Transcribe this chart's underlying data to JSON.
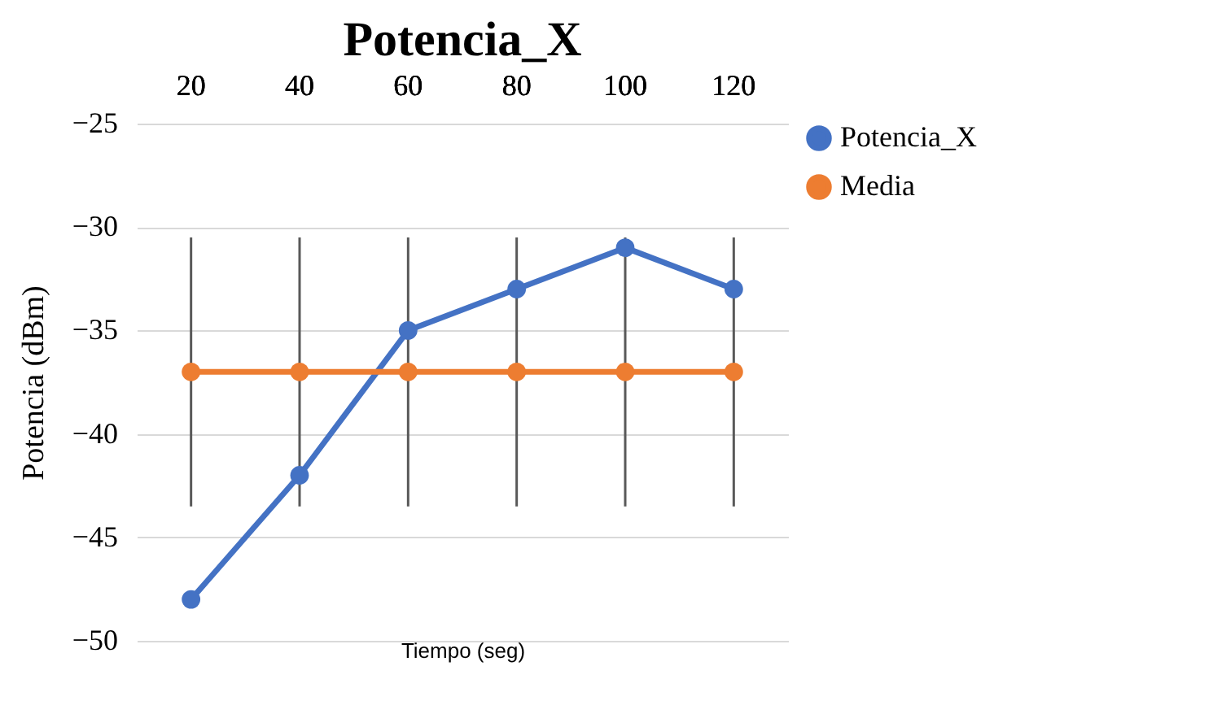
{
  "chart_data": {
    "type": "line",
    "title": "Potencia_X",
    "xlabel": "Tiempo (seg)",
    "ylabel": "Potencia (dBm)",
    "categories": [
      "20",
      "40",
      "60",
      "80",
      "100",
      "120"
    ],
    "series": [
      {
        "name": "Potencia_X",
        "color": "#4472c4",
        "values": [
          -48,
          -42,
          -35,
          -33,
          -31,
          -33
        ]
      },
      {
        "name": "Media",
        "color": "#ed7d31",
        "values": [
          -37,
          -37,
          -37,
          -37,
          -37,
          -37
        ],
        "errors": [
          6.5,
          6.5,
          6.5,
          6.5,
          6.5,
          6.5
        ]
      }
    ],
    "ylim": [
      -50,
      -25
    ],
    "yticks": [
      -50,
      -45,
      -40,
      -35,
      -30,
      -25
    ],
    "grid": "y",
    "legend": "right",
    "marker": "circle"
  }
}
